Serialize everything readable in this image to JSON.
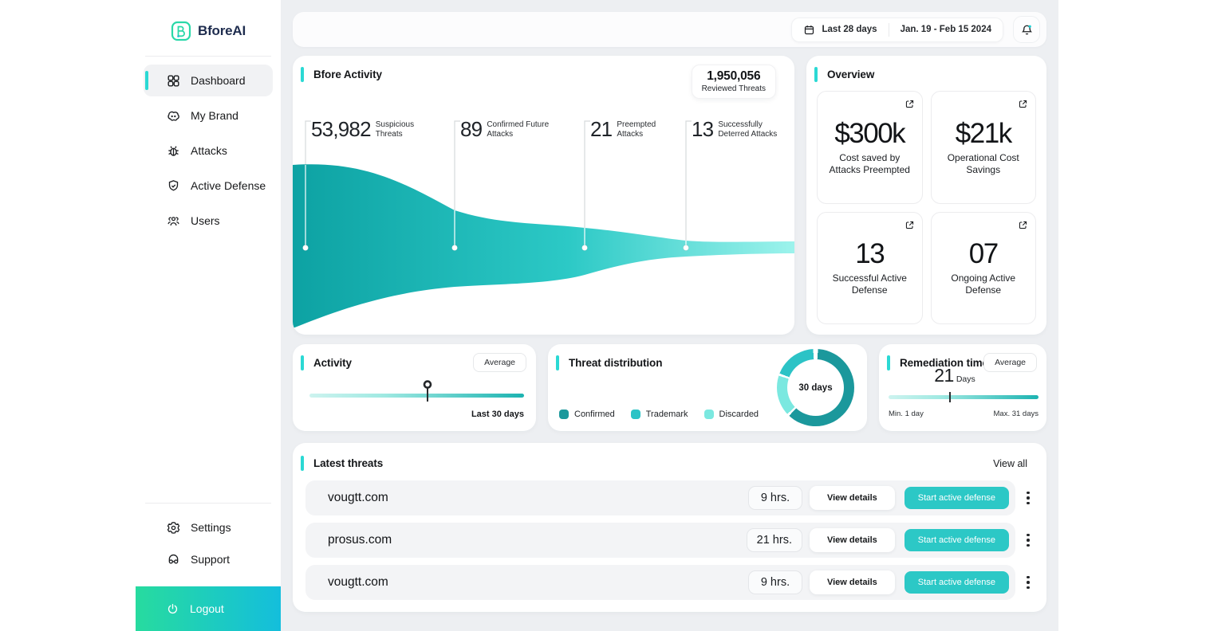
{
  "brand": {
    "name": "BforeAI"
  },
  "topbar": {
    "date_range_label": "Last 28 days",
    "date_range_value": "Jan. 19 - Feb 15 2024"
  },
  "sidebar": {
    "nav": [
      {
        "label": "Dashboard"
      },
      {
        "label": "My Brand"
      },
      {
        "label": "Attacks"
      },
      {
        "label": "Active Defense"
      },
      {
        "label": "Users"
      }
    ],
    "settings_label": "Settings",
    "support_label": "Support",
    "logout_label": "Logout"
  },
  "bfore_activity": {
    "title": "Bfore Activity",
    "reviewed_value": "1,950,056",
    "reviewed_label": "Reviewed Threats",
    "stages": [
      {
        "value": "53,982",
        "label": "Suspicious Threats"
      },
      {
        "value": "89",
        "label": "Confirmed Future Attacks"
      },
      {
        "value": "21",
        "label": "Preempted Attacks"
      },
      {
        "value": "13",
        "label": "Successfully Deterred Attacks"
      }
    ]
  },
  "overview": {
    "title": "Overview",
    "cards": [
      {
        "value": "$300k",
        "label": "Cost saved by Attacks Preempted"
      },
      {
        "value": "$21k",
        "label": "Operational Cost Savings"
      },
      {
        "value": "13",
        "label": "Successful Active Defense"
      },
      {
        "value": "07",
        "label": "Ongoing Active Defense"
      }
    ]
  },
  "activity": {
    "title": "Activity",
    "filter_label": "Average",
    "period_label": "Last 30 days",
    "marker_pct": 55
  },
  "threat_distribution": {
    "title": "Threat distribution",
    "center_label": "30 days",
    "chart": {
      "type": "pie",
      "donut": true,
      "paint_order": [
        0,
        2,
        1
      ],
      "segments": [
        {
          "label": "Confirmed",
          "pct": 61,
          "color": "#1b989c"
        },
        {
          "label": "Trademark",
          "pct": 18,
          "color": "#2cc3c6"
        },
        {
          "label": "Discarded",
          "pct": 17,
          "color": "#7be8e0"
        }
      ]
    }
  },
  "remediation": {
    "title": "Remediation time",
    "filter_label": "Average",
    "value": "21",
    "unit": "Days",
    "min_label": "Min. 1 day",
    "max_label": "Max. 31 days",
    "marker_pct": 41
  },
  "latest_threats": {
    "title": "Latest threats",
    "view_all_label": "View all",
    "rows": [
      {
        "domain": "vougtt.com",
        "age": "9 hrs.",
        "details_label": "View details",
        "action_label": "Start active defense"
      },
      {
        "domain": "prosus.com",
        "age": "21 hrs.",
        "details_label": "View details",
        "action_label": "Start active defense"
      },
      {
        "domain": "vougtt.com",
        "age": "9 hrs.",
        "details_label": "View details",
        "action_label": "Start active defense"
      }
    ]
  },
  "colors": {
    "accent": "#2bd9d4",
    "button_teal": "#2cc8c6",
    "funnel_start": "#0da2a3",
    "funnel_end": "#9df3ec",
    "notification_dot": "#17d0d4"
  }
}
